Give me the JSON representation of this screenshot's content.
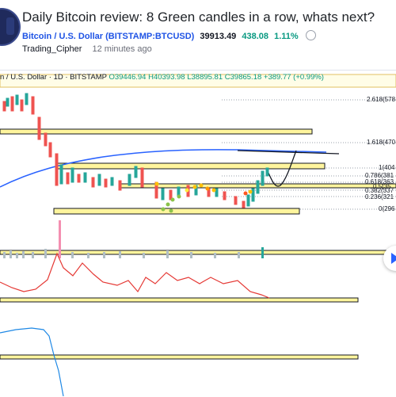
{
  "post": {
    "title": "Daily Bitcoin review: 8 Green candles in a row, whats next?",
    "symbol_link": "Bitcoin / U.S. Dollar (BITSTAMP:BTCUSD)",
    "price": "39913.49",
    "change": "438.08",
    "change_pct": "1.11%",
    "author": "Trading_Cipher",
    "published": "12 minutes ago"
  },
  "chart": {
    "legend_symbol": "n / U.S. Dollar · 1D · BITSTAMP",
    "open": "O39446.94",
    "high": "H40393.98",
    "low": "L38895.81",
    "close": "C39865.18",
    "change": "+389.77 (+0.99%)",
    "fib_labels": [
      "2.618(578",
      "1.618(470",
      "1(404",
      "0.786(381",
      "0.618(363",
      "0.5(35",
      "0.382(337",
      "0.236(321",
      "0(296"
    ]
  },
  "colors": {
    "up": "#26a69a",
    "down": "#ef5350",
    "ma": "#2962ff",
    "zone_fill": "#fff9c4",
    "accent": "#1e53e5"
  },
  "icons": [
    "clock-icon",
    "play-icon",
    "avatar"
  ]
}
